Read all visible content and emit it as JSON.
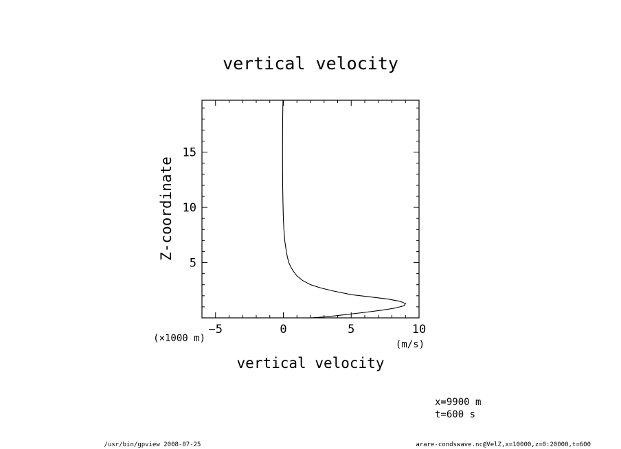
{
  "chart_data": {
    "type": "line",
    "title": "vertical velocity",
    "xlabel": "vertical velocity",
    "ylabel": "Z-coordinate",
    "x_unit": "(m/s)",
    "y_unit": "(×1000 m)",
    "xlim": [
      -6,
      10
    ],
    "ylim": [
      0,
      19.7
    ],
    "x_ticks": [
      -5,
      0,
      5,
      10
    ],
    "y_ticks": [
      5,
      10,
      15
    ],
    "x_tick_labels": [
      "−5",
      "0",
      "5",
      "10"
    ],
    "y_tick_labels": [
      "5",
      "10",
      "15"
    ],
    "x_minor_step": 1,
    "y_minor_step": 1,
    "grid": false,
    "series": [
      {
        "x": [
          2.0,
          3.2,
          4.6,
          6.0,
          7.3,
          8.3,
          8.9,
          9.0,
          8.6,
          7.7,
          6.4,
          5.0,
          3.8,
          2.8,
          2.0,
          1.4,
          1.0,
          0.75,
          0.55,
          0.4,
          0.3,
          0.22,
          0.16,
          0.1,
          0.04,
          0.0,
          -0.03,
          -0.05,
          -0.06,
          -0.06,
          -0.05,
          -0.03
        ],
        "y": [
          0.0,
          0.1,
          0.3,
          0.5,
          0.7,
          0.9,
          1.1,
          1.3,
          1.5,
          1.7,
          1.9,
          2.1,
          2.4,
          2.7,
          3.0,
          3.4,
          3.8,
          4.2,
          4.6,
          5.0,
          5.5,
          6.0,
          6.5,
          7.0,
          8.0,
          9.0,
          10.5,
          12.0,
          14.0,
          16.0,
          18.0,
          19.7
        ]
      }
    ]
  },
  "annotations": {
    "position_x": "x=9900  m",
    "position_t": "t=600  s"
  },
  "footer": {
    "left": "/usr/bin/gpview   2008-07-25",
    "right": "arare-condswave.nc@VelZ,x=10000,z=0:20000,t=600"
  }
}
